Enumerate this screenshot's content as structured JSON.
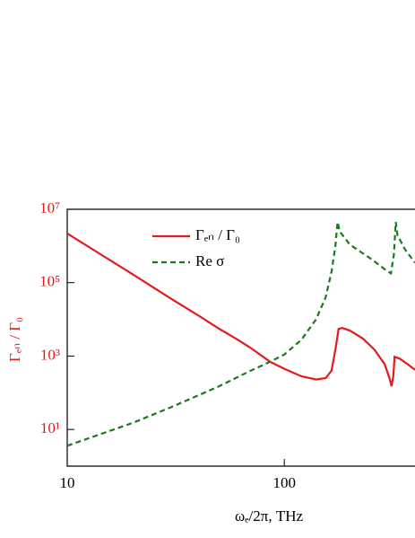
{
  "chart_data": {
    "type": "line",
    "xlabel": "ωₑ/2π, THz",
    "ylabel": "Γₑₙ / Γ₀",
    "xscale": "log",
    "yscale": "log",
    "xlim": [
      10,
      400
    ],
    "ylim": [
      1,
      10000000
    ],
    "xticks": [
      10,
      100
    ],
    "yticks": [
      {
        "value": 10,
        "label": "10¹"
      },
      {
        "value": 1000,
        "label": "10³"
      },
      {
        "value": 100000,
        "label": "10⁵"
      },
      {
        "value": 10000000,
        "label": "10⁷"
      }
    ],
    "legend": "upper center",
    "series": [
      {
        "name": "Γₑₙ / Γ₀",
        "color": "#e41a1c",
        "dash": "solid",
        "x": [
          10,
          15,
          20,
          30,
          40,
          50,
          60,
          70,
          86,
          100,
          120,
          140,
          155,
          165,
          172,
          178,
          185,
          200,
          230,
          260,
          290,
          305,
          312,
          318,
          322,
          340,
          370,
          400
        ],
        "values": [
          2200000,
          490000,
          170000,
          37000,
          13000,
          5600,
          2950,
          1660,
          700,
          450,
          280,
          230,
          250,
          400,
          1500,
          5500,
          5800,
          5000,
          3000,
          1500,
          600,
          250,
          150,
          300,
          950,
          850,
          600,
          420
        ]
      },
      {
        "name": "Re σ",
        "color": "#1a7a1a",
        "dash": "dashed",
        "x": [
          10,
          20,
          30,
          50,
          70,
          86,
          100,
          120,
          140,
          155,
          165,
          172,
          176,
          180,
          200,
          250,
          300,
          310,
          320,
          326,
          332,
          360,
          400
        ],
        "values": [
          3.6,
          15,
          40,
          150,
          400,
          700,
          1100,
          2800,
          10000,
          40000,
          200000,
          1000000,
          4500000,
          2500000,
          1100000,
          450000,
          200000,
          180000,
          600000,
          4500000,
          2000000,
          800000,
          350000
        ]
      }
    ]
  }
}
